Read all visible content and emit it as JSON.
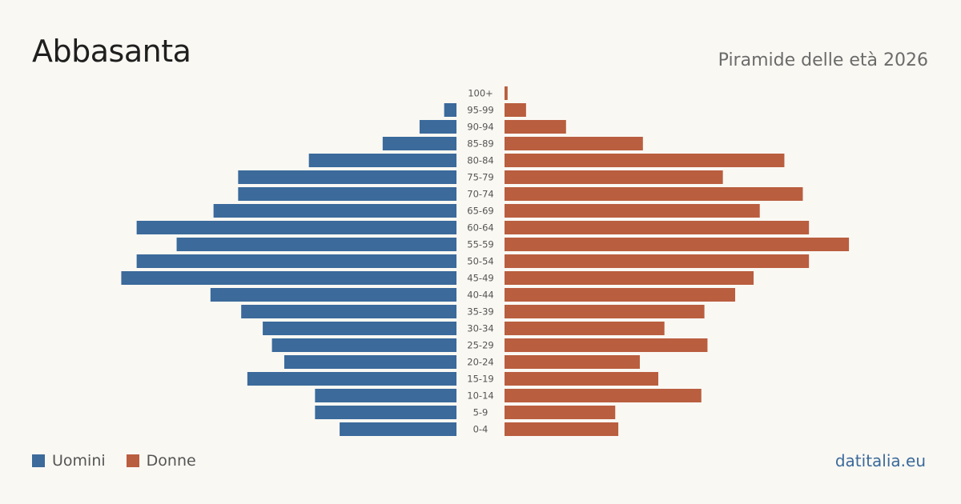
{
  "header": {
    "title": "Abbasanta",
    "subtitle": "Piramide delle età 2026"
  },
  "legend": {
    "men_label": "Uomini",
    "women_label": "Donne"
  },
  "brand": {
    "text": "datitalia.eu"
  },
  "colors": {
    "men": "#3b6a9b",
    "women": "#b95e3f",
    "brand": "#3b6a9b",
    "label": "#555555",
    "background": "#faf8f3"
  },
  "chart_data": {
    "type": "bar",
    "orientation": "horizontal",
    "layout": "population-pyramid",
    "categories": [
      "100+",
      "95-99",
      "90-94",
      "85-89",
      "80-84",
      "75-79",
      "70-74",
      "65-69",
      "60-64",
      "55-59",
      "50-54",
      "45-49",
      "40-44",
      "35-39",
      "30-34",
      "25-29",
      "20-24",
      "15-19",
      "10-14",
      "5-9",
      "0-4"
    ],
    "series": [
      {
        "name": "Uomini",
        "side": "left",
        "values": [
          0,
          4,
          12,
          24,
          48,
          71,
          71,
          79,
          104,
          91,
          104,
          109,
          80,
          70,
          63,
          60,
          56,
          68,
          46,
          46,
          38
        ]
      },
      {
        "name": "Donne",
        "side": "right",
        "values": [
          1,
          7,
          20,
          45,
          91,
          71,
          97,
          83,
          99,
          112,
          99,
          81,
          75,
          65,
          52,
          66,
          44,
          50,
          64,
          36,
          37
        ]
      }
    ],
    "grid": false,
    "legend_position": "bottom-left"
  }
}
